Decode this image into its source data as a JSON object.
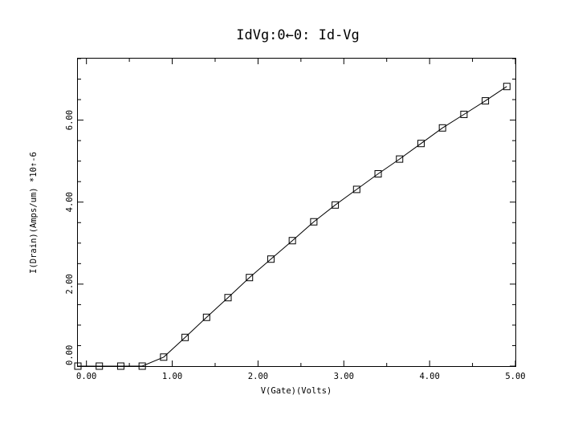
{
  "chart_data": {
    "type": "line",
    "title": "IdVg:0←0: Id-Vg",
    "xlabel": "V(Gate)(Volts)",
    "ylabel": "I(Drain)(Amps/um) *10↑-6",
    "xlim": [
      -0.1,
      5.0
    ],
    "ylim": [
      0.0,
      7.5
    ],
    "x_ticks": [
      0.0,
      1.0,
      2.0,
      3.0,
      4.0,
      5.0
    ],
    "x_tick_labels": [
      "0.00",
      "1.00",
      "2.00",
      "3.00",
      "4.00",
      "5.00"
    ],
    "y_ticks": [
      0.0,
      2.0,
      4.0,
      6.0
    ],
    "y_tick_labels": [
      "0.00",
      "2.00",
      "4.00",
      "6.00"
    ],
    "grid": false,
    "marker": "square",
    "series": [
      {
        "x": [
          -0.1,
          0.15,
          0.4,
          0.65,
          0.9,
          1.15,
          1.4,
          1.65,
          1.9,
          2.15,
          2.4,
          2.65,
          2.9,
          3.15,
          3.4,
          3.65,
          3.9,
          4.15,
          4.4,
          4.65,
          4.9
        ],
        "y": [
          0.0,
          0.0,
          0.0,
          0.0,
          0.22,
          0.7,
          1.19,
          1.67,
          2.16,
          2.61,
          3.06,
          3.52,
          3.93,
          4.31,
          4.69,
          5.05,
          5.43,
          5.81,
          6.14,
          6.47,
          6.82
        ]
      }
    ]
  }
}
